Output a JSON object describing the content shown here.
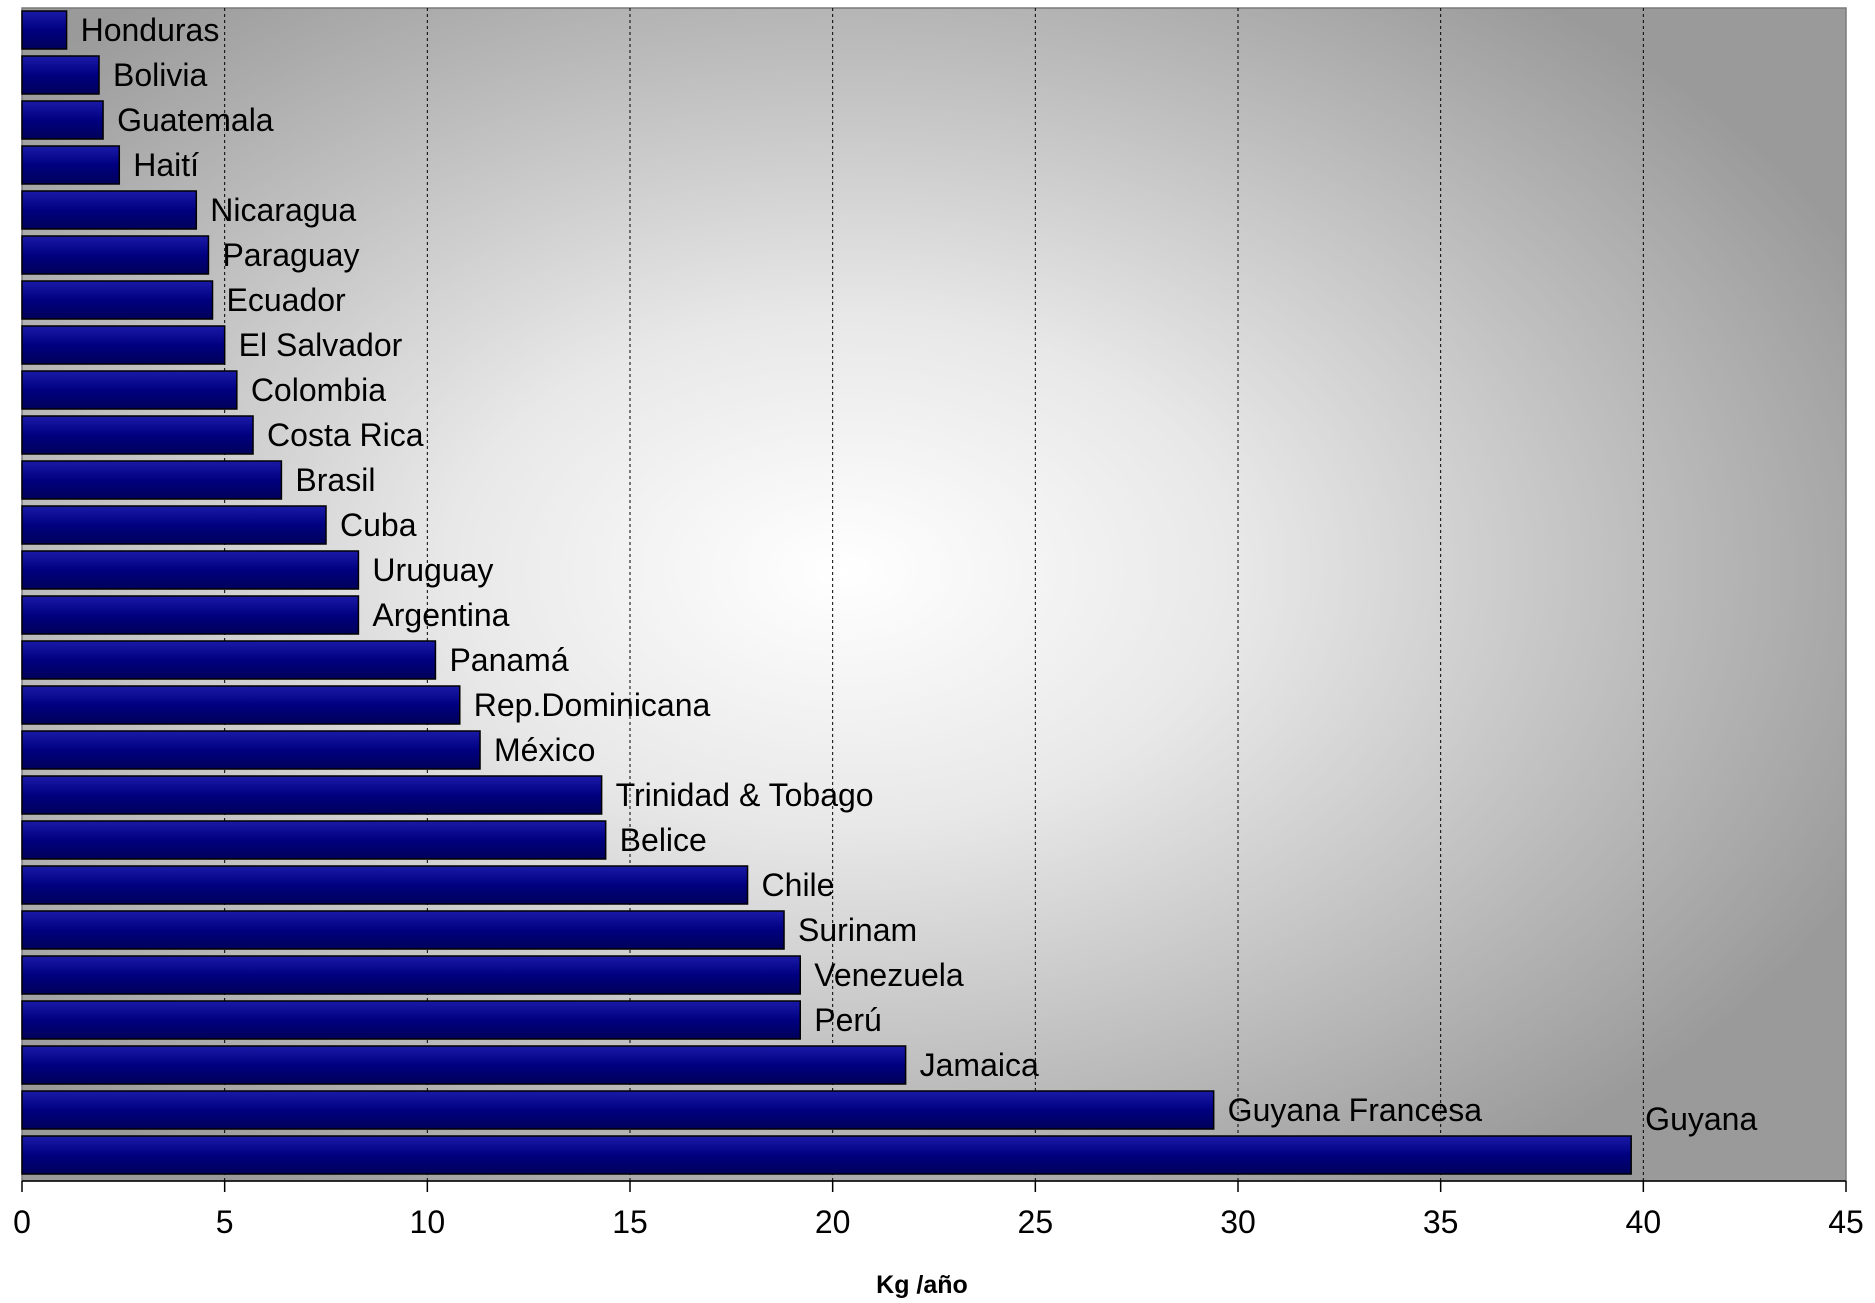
{
  "chart_data": {
    "type": "bar",
    "orientation": "horizontal",
    "title": "",
    "xlabel": "Kg /año",
    "ylabel": "",
    "xlim": [
      0,
      45
    ],
    "x_ticks": [
      0,
      5,
      10,
      15,
      20,
      25,
      30,
      35,
      40,
      45
    ],
    "grid": "vertical dashed",
    "legend": "none",
    "bar_color": "#000080",
    "categories": [
      "Honduras",
      "Bolivia",
      "Guatemala",
      "Haití",
      "Nicaragua",
      "Paraguay",
      "Ecuador",
      "El Salvador",
      "Colombia",
      "Costa Rica",
      "Brasil",
      "Cuba",
      "Uruguay",
      "Argentina",
      "Panamá",
      "Rep.Dominicana",
      "México",
      "Trinidad & Tobago",
      "Belice",
      "Chile",
      "Surinam",
      "Venezuela",
      "Perú",
      "Jamaica",
      "Guyana Francesa",
      "Guyana"
    ],
    "values": [
      1.1,
      1.9,
      2.0,
      2.4,
      4.3,
      4.6,
      4.7,
      5.0,
      5.3,
      5.7,
      6.4,
      7.5,
      8.3,
      8.3,
      10.2,
      10.8,
      11.3,
      14.3,
      14.4,
      17.9,
      18.8,
      19.2,
      19.2,
      21.8,
      29.4,
      39.7
    ]
  }
}
